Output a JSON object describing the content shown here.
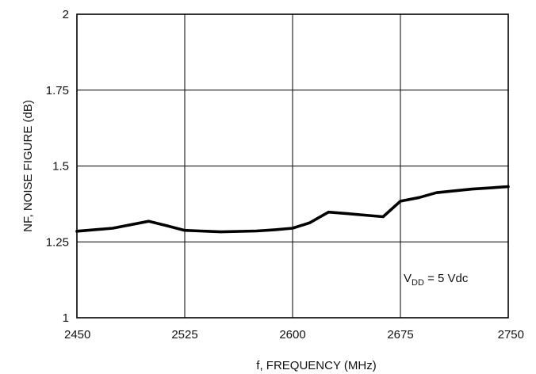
{
  "chart_data": {
    "type": "line",
    "xlabel": "f, FREQUENCY (MHz)",
    "ylabel": "NF, NOISE FIGURE (dB)",
    "xlim": [
      2450,
      2750
    ],
    "ylim": [
      1,
      2
    ],
    "x_ticks": [
      "2450",
      "2525",
      "2600",
      "2675",
      "2750"
    ],
    "y_ticks": [
      "1",
      "1.25",
      "1.5",
      "1.75",
      "2"
    ],
    "grid": true,
    "annotation": {
      "prefix": "V",
      "subscript": "DD",
      "suffix": " = 5 Vdc"
    },
    "series": [
      {
        "x": [
          2450,
          2475,
          2500,
          2512,
          2525,
          2550,
          2575,
          2588,
          2600,
          2612,
          2625,
          2638,
          2650,
          2663,
          2675,
          2688,
          2700,
          2712,
          2725,
          2738,
          2750
        ],
        "y": [
          1.285,
          1.295,
          1.318,
          1.304,
          1.288,
          1.283,
          1.286,
          1.29,
          1.295,
          1.313,
          1.348,
          1.343,
          1.338,
          1.333,
          1.384,
          1.396,
          1.412,
          1.418,
          1.424,
          1.428,
          1.432
        ],
        "color": "#000000"
      }
    ]
  }
}
